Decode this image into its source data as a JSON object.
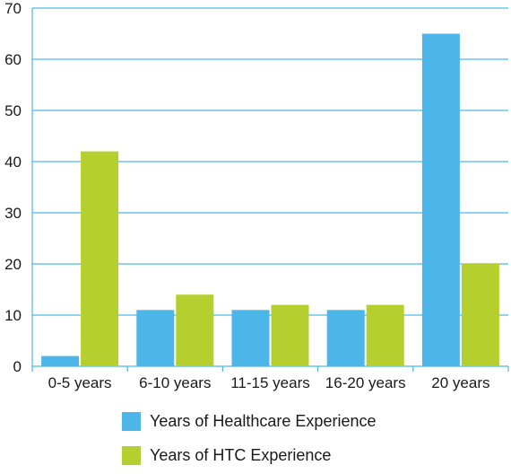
{
  "chart_data": {
    "type": "bar",
    "categories": [
      "0-5 years",
      "6-10 years",
      "11-15 years",
      "16-20 years",
      "20 years"
    ],
    "series": [
      {
        "name": "Years of Healthcare Experience",
        "color": "#4db6e8",
        "values": [
          2,
          11,
          11,
          11,
          65
        ]
      },
      {
        "name": "Years of HTC Experience",
        "color": "#b5cf2f",
        "values": [
          42,
          14,
          12,
          12,
          20
        ]
      }
    ],
    "yticks": [
      "0",
      "10",
      "20",
      "30",
      "40",
      "50",
      "60",
      "70"
    ],
    "ylim": [
      0,
      70
    ],
    "grid": true,
    "gridline_color": "#4db6e8",
    "legend_position": "bottom"
  }
}
